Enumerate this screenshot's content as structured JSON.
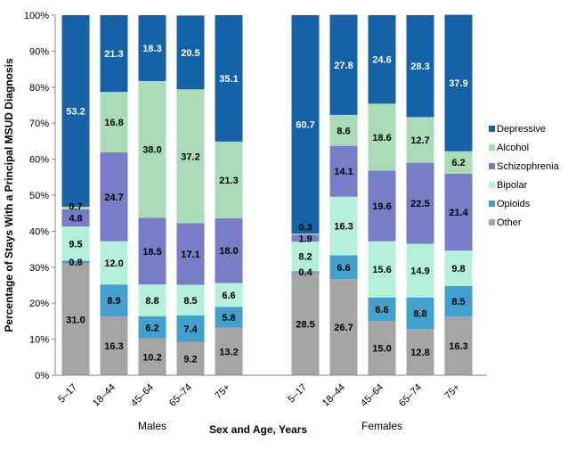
{
  "chart_data": {
    "type": "bar",
    "stacked": true,
    "xlabel": "Sex and Age, Years",
    "ylabel": "Percentage of Stays With a Principal MSUD Diagnosis",
    "ylim": [
      0,
      100
    ],
    "yticks": [
      "0%",
      "10%",
      "20%",
      "30%",
      "40%",
      "50%",
      "60%",
      "70%",
      "80%",
      "90%",
      "100%"
    ],
    "groups": [
      {
        "name": "Males",
        "categories": [
          "5–17",
          "18–44",
          "45–64",
          "65–74",
          "75+"
        ]
      },
      {
        "name": "Females",
        "categories": [
          "5–17",
          "18–44",
          "45–64",
          "65–74",
          "75+"
        ]
      }
    ],
    "legend_position": "right",
    "series": [
      {
        "name": "Other",
        "color": "#a5a5a5",
        "label_color": "#000000",
        "values": [
          31.0,
          16.3,
          10.2,
          9.2,
          13.2,
          28.5,
          26.7,
          15.0,
          12.8,
          16.3
        ]
      },
      {
        "name": "Opioids",
        "color": "#41a0cc",
        "label_color": "#000000",
        "values": [
          0.8,
          8.9,
          6.2,
          7.4,
          5.8,
          0.4,
          6.6,
          6.6,
          8.8,
          8.5
        ]
      },
      {
        "name": "Bipolar",
        "color": "#b5f0db",
        "label_color": "#000000",
        "values": [
          9.5,
          12.0,
          8.8,
          8.5,
          6.6,
          8.2,
          16.3,
          15.6,
          14.9,
          9.8
        ]
      },
      {
        "name": "Schizophrenia",
        "color": "#787dc8",
        "label_color": "#000000",
        "values": [
          4.8,
          24.7,
          18.5,
          17.1,
          18.0,
          1.9,
          14.1,
          19.6,
          22.5,
          21.4
        ]
      },
      {
        "name": "Alcohol",
        "color": "#a9dcb6",
        "label_color": "#000000",
        "values": [
          0.7,
          16.8,
          38.0,
          37.2,
          21.3,
          0.3,
          8.6,
          18.6,
          12.7,
          6.2
        ]
      },
      {
        "name": "Depressive",
        "color": "#1562a8",
        "label_color": "#ffffff",
        "values": [
          53.2,
          21.3,
          18.3,
          20.5,
          35.1,
          60.7,
          27.8,
          24.6,
          28.3,
          37.9
        ]
      }
    ],
    "legend_order": [
      "Depressive",
      "Alcohol",
      "Schizophrenia",
      "Bipolar",
      "Opioids",
      "Other"
    ]
  }
}
